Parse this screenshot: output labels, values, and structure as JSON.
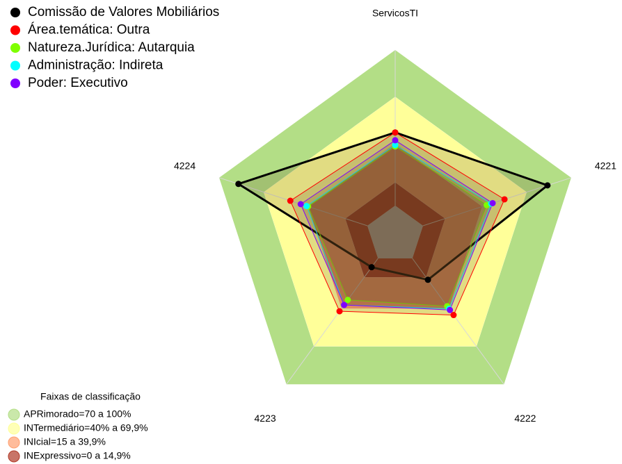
{
  "chart_data": {
    "type": "radar",
    "categories": [
      "ServicosTI",
      "4221",
      "4222",
      "4223",
      "4224"
    ],
    "rlim": [
      0,
      100
    ],
    "series": [
      {
        "name": "Comissão de Valores Mobiliários",
        "color": "#000000",
        "values": [
          47,
          84,
          17,
          7,
          87
        ]
      },
      {
        "name": "Área.temática: Outra",
        "color": "#ff0000",
        "values": [
          47,
          55,
          45,
          42,
          52
        ]
      },
      {
        "name": "Natureza.Jurídica: Autarquia",
        "color": "#7fff00",
        "values": [
          38,
          43,
          38,
          33,
          40
        ]
      },
      {
        "name": "Administração: Indireta",
        "color": "#00ffff",
        "values": [
          39,
          46,
          40,
          37,
          41
        ]
      },
      {
        "name": "Poder: Executivo",
        "color": "#8000ff",
        "values": [
          42,
          47,
          41,
          37,
          45
        ]
      }
    ],
    "bands": {
      "title": "Faixas de classificação",
      "items": [
        {
          "label": "APRimorado=70 a 100%",
          "from": 70,
          "to": 100,
          "color": "#b3de86"
        },
        {
          "label": "INTermediário=40% a 69,9%",
          "from": 40,
          "to": 69.9,
          "color": "#ffff99"
        },
        {
          "label": "INIcial=15 a 39,9%",
          "from": 15,
          "to": 39.9,
          "color": "#ffa070"
        },
        {
          "label": "INExpressivo=0 a 14,9%",
          "from": 0,
          "to": 14.9,
          "color": "#b03a28"
        }
      ]
    }
  }
}
